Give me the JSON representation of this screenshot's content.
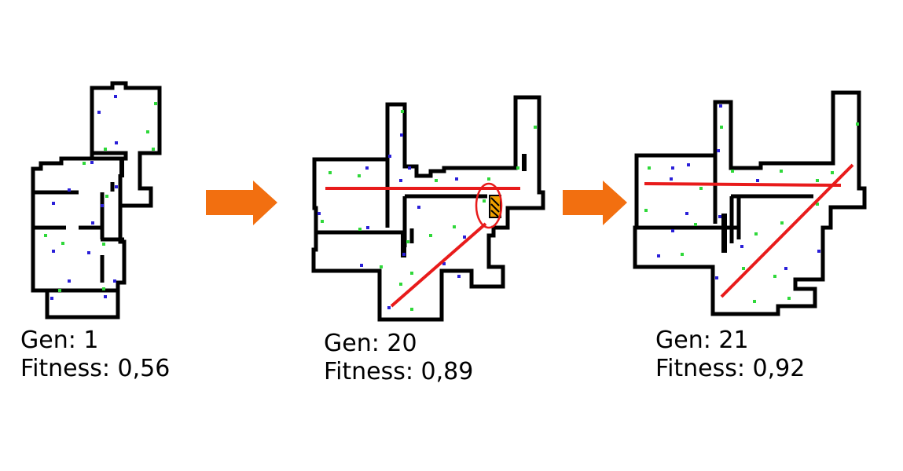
{
  "panels": [
    {
      "gen": "Gen: 1",
      "fitness": "Fitness: 0,56"
    },
    {
      "gen": "Gen: 20",
      "fitness": "Fitness: 0,89"
    },
    {
      "gen": "Gen: 21",
      "fitness": "Fitness: 0,92"
    }
  ],
  "colors": {
    "wall": "#000000",
    "arrow": "#f26f10",
    "corridor": "#e81b1b",
    "marker_blue": "#2a1fd8",
    "marker_green": "#2fd83a"
  }
}
